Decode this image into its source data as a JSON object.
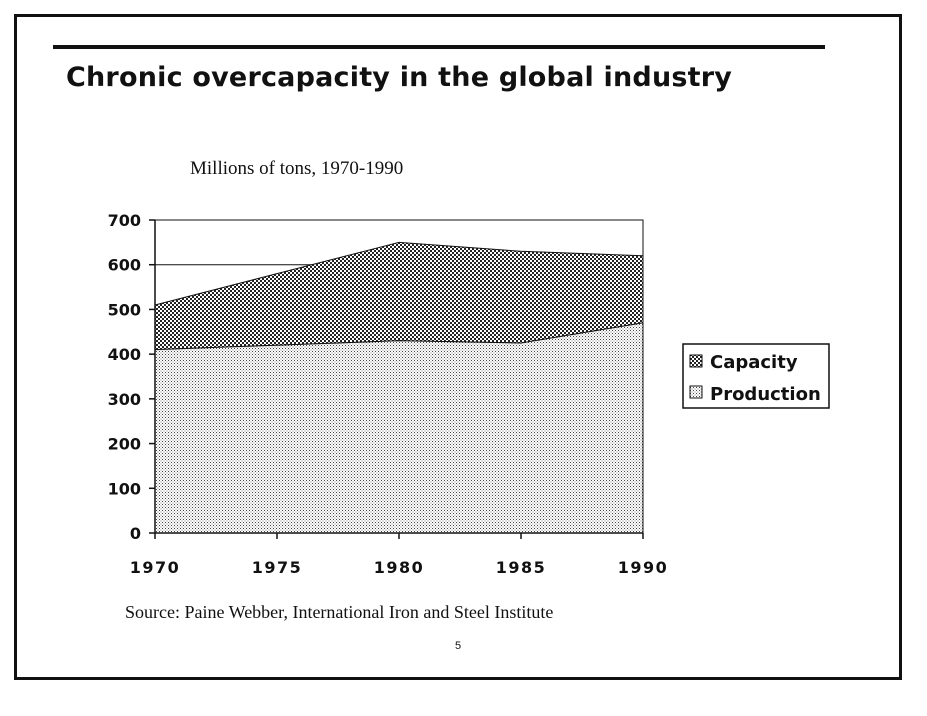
{
  "slide": {
    "title": "Chronic overcapacity in the global industry",
    "source": "Source:  Paine Webber, International Iron and Steel Institute",
    "page_number": "5"
  },
  "chart_data": {
    "type": "area",
    "title": "Millions of tons, 1970-1990",
    "x": [
      1970,
      1975,
      1980,
      1985,
      1990
    ],
    "x_tick_labels": [
      "1970",
      "1975",
      "1980",
      "1985",
      "1990"
    ],
    "y_tick_labels": [
      "0",
      "100",
      "200",
      "300",
      "400",
      "500",
      "600",
      "700"
    ],
    "ylim": [
      0,
      700
    ],
    "series": [
      {
        "name": "Capacity",
        "values": [
          510,
          580,
          650,
          630,
          620
        ]
      },
      {
        "name": "Production",
        "values": [
          410,
          420,
          430,
          425,
          470
        ]
      }
    ],
    "legend": [
      "Capacity",
      "Production"
    ],
    "legend_position": "right",
    "colors": {
      "ink": "#111111",
      "capacity_fill": "#8a8a8a",
      "production_fill": "#c8c8c8"
    }
  }
}
